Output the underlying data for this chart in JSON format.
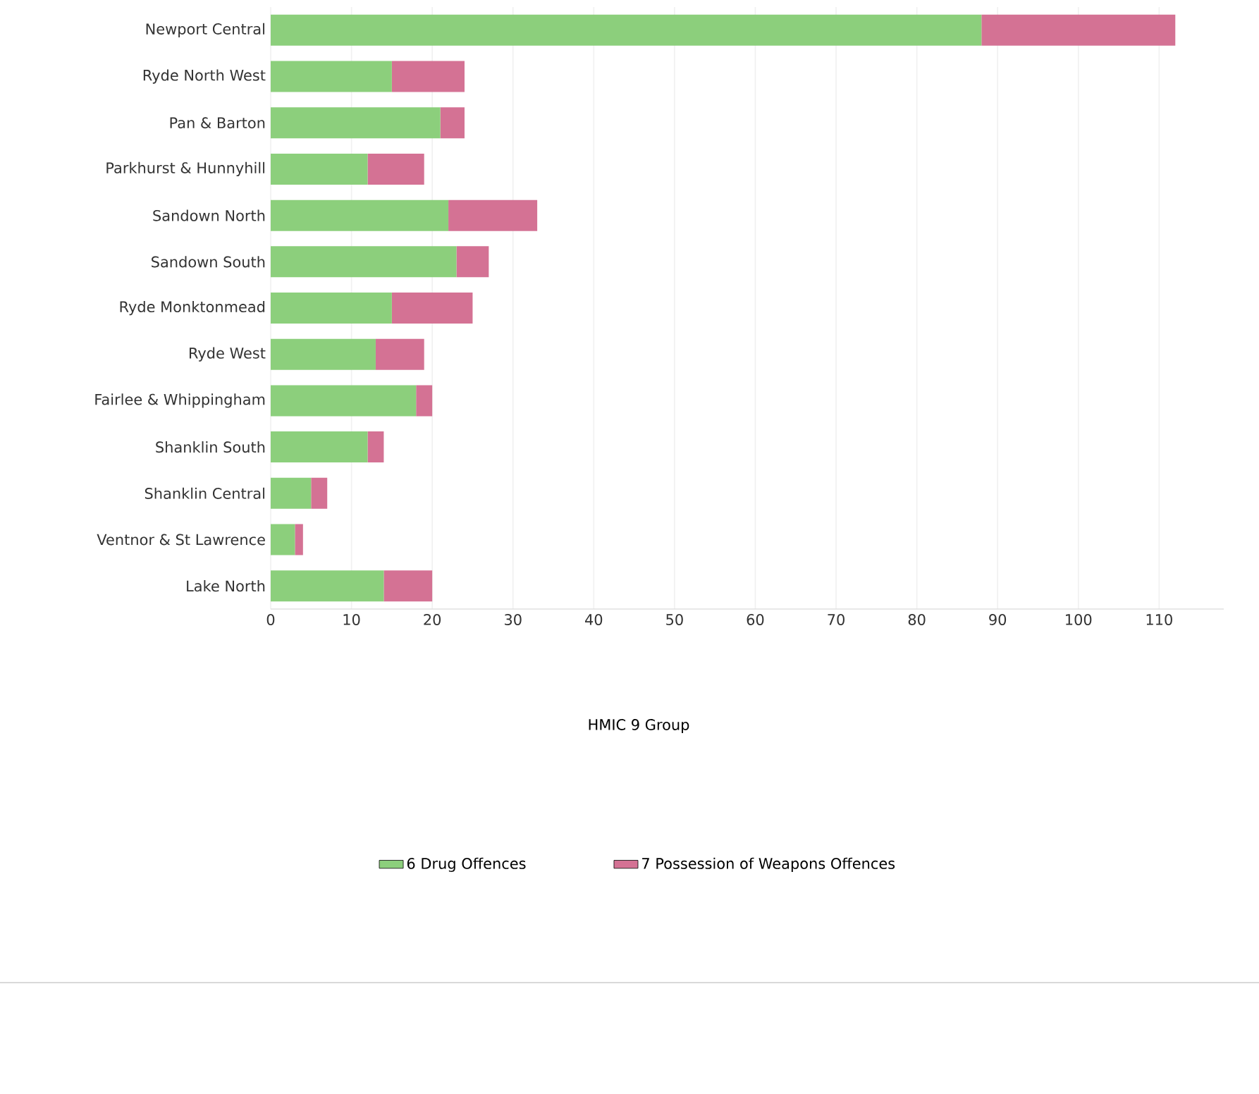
{
  "chart_data": {
    "type": "bar",
    "orientation": "horizontal",
    "stacked": true,
    "categories": [
      "Newport Central",
      "Ryde North West",
      "Pan & Barton",
      "Parkhurst & Hunnyhill",
      "Sandown North",
      "Sandown South",
      "Ryde Monktonmead",
      "Ryde West",
      "Fairlee & Whippingham",
      "Shanklin South",
      "Shanklin Central",
      "Ventnor & St Lawrence",
      "Lake North"
    ],
    "series": [
      {
        "name": "6 Drug Offences",
        "color": "#8ccf7c",
        "values": [
          88,
          15,
          21,
          12,
          22,
          23,
          15,
          13,
          18,
          12,
          5,
          3,
          14
        ]
      },
      {
        "name": "7 Possession of Weapons Offences",
        "color": "#d47294",
        "values": [
          24,
          9,
          3,
          7,
          11,
          4,
          10,
          6,
          2,
          2,
          2,
          1,
          6
        ]
      }
    ],
    "xlim": [
      0,
      118
    ],
    "xticks": [
      0,
      10,
      20,
      30,
      40,
      50,
      60,
      70,
      80,
      90,
      100,
      110
    ],
    "grid": "x",
    "legend": "bottom",
    "legend_title": "HMIC 9 Group"
  }
}
